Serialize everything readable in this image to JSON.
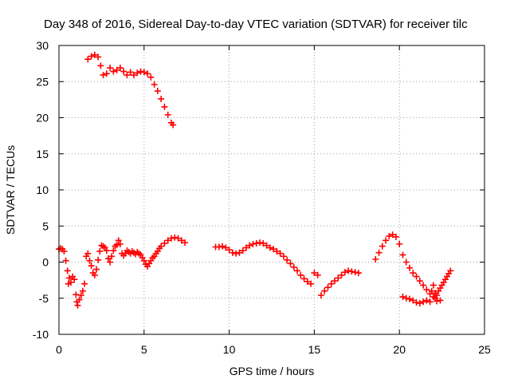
{
  "chart_data": {
    "type": "scatter",
    "title": "Day 348 of 2016, Sidereal Day-to-day VTEC variation (SDTVAR) for receiver tilc",
    "xlabel": "GPS time / hours",
    "ylabel": "SDTVAR / TECUs",
    "xlim": [
      0,
      25
    ],
    "ylim": [
      -10,
      30
    ],
    "xticks": [
      0,
      5,
      10,
      15,
      20,
      25
    ],
    "yticks": [
      -10,
      -5,
      0,
      5,
      10,
      15,
      20,
      25,
      30
    ],
    "xtick_labels": [
      "0",
      "5",
      "10",
      "15",
      "20",
      "25"
    ],
    "ytick_labels": [
      "-10",
      "-5",
      "0",
      "5",
      "10",
      "15",
      "20",
      "25",
      "30"
    ],
    "grid": true,
    "legend": "none",
    "marker": "+",
    "color": "#ff0000",
    "series": [
      {
        "values": [
          [
            1.7,
            28.1
          ],
          [
            1.9,
            28.5
          ],
          [
            2.1,
            28.7
          ],
          [
            2.3,
            28.4
          ],
          [
            2.45,
            27.2
          ],
          [
            2.6,
            25.9
          ],
          [
            2.8,
            26.1
          ],
          [
            3.0,
            26.9
          ],
          [
            3.2,
            26.4
          ],
          [
            3.4,
            26.6
          ],
          [
            3.6,
            26.9
          ],
          [
            3.8,
            26.4
          ],
          [
            4.0,
            25.9
          ],
          [
            4.2,
            26.3
          ],
          [
            4.4,
            25.9
          ],
          [
            4.6,
            26.2
          ],
          [
            4.8,
            26.4
          ],
          [
            5.0,
            26.3
          ],
          [
            5.2,
            26.1
          ],
          [
            5.4,
            25.6
          ],
          [
            5.6,
            24.6
          ],
          [
            5.8,
            23.7
          ],
          [
            6.0,
            22.6
          ],
          [
            6.2,
            21.5
          ],
          [
            6.4,
            20.4
          ],
          [
            6.6,
            19.3
          ],
          [
            6.7,
            19.0
          ]
        ]
      },
      {
        "values": [
          [
            0.0,
            1.8
          ],
          [
            0.1,
            1.9
          ],
          [
            0.2,
            1.8
          ],
          [
            0.3,
            1.5
          ],
          [
            0.4,
            0.2
          ],
          [
            0.5,
            -1.2
          ],
          [
            0.55,
            -3.0
          ],
          [
            0.6,
            -2.2
          ],
          [
            0.7,
            -2.8
          ],
          [
            0.8,
            -2.0
          ],
          [
            0.9,
            -2.4
          ],
          [
            1.0,
            -4.5
          ],
          [
            1.05,
            -5.5
          ],
          [
            1.1,
            -6.0
          ],
          [
            1.2,
            -5.2
          ],
          [
            1.3,
            -4.6
          ],
          [
            1.4,
            -4.0
          ],
          [
            1.5,
            -3.0
          ],
          [
            1.6,
            0.8
          ],
          [
            1.7,
            1.2
          ],
          [
            1.8,
            0.2
          ],
          [
            1.9,
            -0.5
          ],
          [
            2.0,
            -1.5
          ],
          [
            2.1,
            -1.8
          ],
          [
            2.2,
            -1.0
          ],
          [
            2.3,
            0.3
          ],
          [
            2.4,
            1.5
          ],
          [
            2.5,
            2.3
          ],
          [
            2.6,
            2.2
          ],
          [
            2.7,
            2.0
          ],
          [
            2.8,
            1.6
          ],
          [
            2.9,
            0.5
          ],
          [
            3.0,
            0.0
          ],
          [
            3.1,
            0.8
          ],
          [
            3.2,
            1.6
          ],
          [
            3.3,
            2.2
          ],
          [
            3.4,
            2.4
          ],
          [
            3.5,
            3.0
          ],
          [
            3.6,
            2.5
          ],
          [
            3.7,
            1.2
          ],
          [
            3.8,
            0.9
          ],
          [
            3.9,
            1.2
          ],
          [
            4.0,
            1.6
          ],
          [
            4.1,
            1.4
          ],
          [
            4.2,
            1.2
          ],
          [
            4.3,
            1.5
          ],
          [
            4.4,
            1.3
          ],
          [
            4.5,
            1.1
          ],
          [
            4.6,
            1.4
          ],
          [
            4.7,
            1.2
          ],
          [
            4.8,
            1.0
          ],
          [
            4.9,
            0.6
          ],
          [
            5.0,
            0.2
          ],
          [
            5.1,
            -0.3
          ],
          [
            5.2,
            -0.6
          ],
          [
            5.3,
            -0.2
          ],
          [
            5.4,
            0.2
          ],
          [
            5.5,
            0.6
          ],
          [
            5.6,
            0.8
          ],
          [
            5.7,
            1.2
          ],
          [
            5.8,
            1.5
          ],
          [
            5.9,
            1.9
          ],
          [
            6.0,
            2.2
          ],
          [
            6.2,
            2.6
          ],
          [
            6.4,
            3.0
          ],
          [
            6.6,
            3.3
          ],
          [
            6.8,
            3.4
          ],
          [
            7.0,
            3.3
          ],
          [
            7.2,
            3.0
          ],
          [
            7.4,
            2.7
          ],
          [
            9.2,
            2.1
          ],
          [
            9.4,
            2.1
          ],
          [
            9.6,
            2.2
          ],
          [
            9.8,
            2.0
          ],
          [
            10.0,
            1.7
          ],
          [
            10.2,
            1.3
          ],
          [
            10.4,
            1.2
          ],
          [
            10.6,
            1.3
          ],
          [
            10.8,
            1.6
          ],
          [
            11.0,
            2.0
          ],
          [
            11.2,
            2.3
          ],
          [
            11.4,
            2.5
          ],
          [
            11.6,
            2.6
          ],
          [
            11.8,
            2.7
          ],
          [
            12.0,
            2.6
          ],
          [
            12.2,
            2.3
          ],
          [
            12.4,
            2.0
          ],
          [
            12.6,
            1.8
          ],
          [
            12.8,
            1.5
          ],
          [
            13.0,
            1.2
          ],
          [
            13.2,
            0.8
          ],
          [
            13.4,
            0.3
          ],
          [
            13.6,
            -0.2
          ],
          [
            13.8,
            -0.7
          ],
          [
            14.0,
            -1.2
          ],
          [
            14.2,
            -1.8
          ],
          [
            14.4,
            -2.3
          ],
          [
            14.6,
            -2.7
          ],
          [
            14.8,
            -3.0
          ],
          [
            15.0,
            -1.5
          ],
          [
            15.2,
            -1.8
          ],
          [
            15.4,
            -4.6
          ],
          [
            15.6,
            -4.0
          ],
          [
            15.8,
            -3.5
          ],
          [
            16.0,
            -3.0
          ],
          [
            16.2,
            -2.6
          ],
          [
            16.4,
            -2.2
          ],
          [
            16.6,
            -1.8
          ],
          [
            16.8,
            -1.4
          ],
          [
            17.0,
            -1.2
          ],
          [
            17.2,
            -1.3
          ],
          [
            17.4,
            -1.4
          ],
          [
            17.6,
            -1.5
          ],
          [
            18.6,
            0.4
          ],
          [
            18.8,
            1.3
          ],
          [
            19.0,
            2.2
          ],
          [
            19.2,
            3.0
          ],
          [
            19.4,
            3.6
          ],
          [
            19.6,
            3.8
          ],
          [
            19.8,
            3.5
          ],
          [
            20.0,
            2.5
          ],
          [
            20.2,
            1.0
          ],
          [
            20.4,
            0.0
          ],
          [
            20.6,
            -0.8
          ],
          [
            20.8,
            -1.5
          ],
          [
            21.0,
            -2.0
          ],
          [
            21.2,
            -2.6
          ],
          [
            21.4,
            -3.2
          ],
          [
            21.6,
            -3.8
          ],
          [
            21.8,
            -4.4
          ],
          [
            22.0,
            -4.8
          ],
          [
            22.1,
            -5.0
          ],
          [
            22.2,
            -4.6
          ],
          [
            22.3,
            -4.0
          ],
          [
            22.4,
            -3.6
          ],
          [
            22.5,
            -3.2
          ],
          [
            22.6,
            -2.8
          ],
          [
            22.7,
            -2.4
          ],
          [
            22.8,
            -2.0
          ],
          [
            22.9,
            -1.6
          ],
          [
            23.0,
            -1.2
          ],
          [
            20.2,
            -4.8
          ],
          [
            20.4,
            -5.0
          ],
          [
            20.6,
            -5.1
          ],
          [
            20.8,
            -5.3
          ],
          [
            21.0,
            -5.6
          ],
          [
            21.2,
            -5.7
          ],
          [
            21.4,
            -5.5
          ],
          [
            21.6,
            -5.3
          ],
          [
            21.8,
            -5.5
          ],
          [
            21.9,
            -4.0
          ],
          [
            22.0,
            -3.2
          ],
          [
            22.1,
            -4.3
          ],
          [
            22.2,
            -5.4
          ],
          [
            22.4,
            -5.3
          ]
        ]
      }
    ]
  }
}
